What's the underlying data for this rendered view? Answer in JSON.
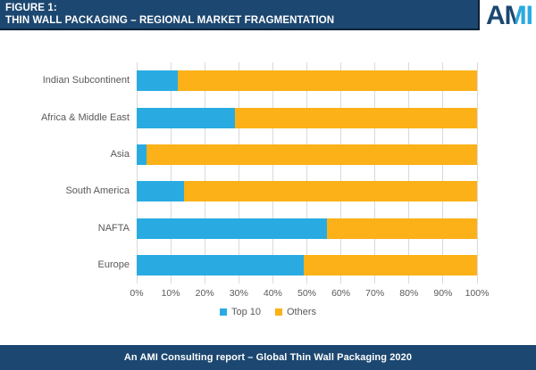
{
  "header": {
    "figure_label": "FIGURE 1:",
    "title": "THIN WALL PACKAGING – REGIONAL MARKET FRAGMENTATION"
  },
  "logo": {
    "letter_a": "A",
    "letter_m": "M",
    "letter_i": "I",
    "navy": "#1C4770",
    "cyan": "#29ABE2"
  },
  "colors": {
    "header_navy": "#1C4770",
    "header_border": "#0D2238",
    "top10_blue": "#29ABE2",
    "others_orange": "#FBB117",
    "axis_text_gray": "#595959",
    "gridline_gray": "#D9D9D9"
  },
  "chart_data": {
    "type": "bar",
    "orientation": "horizontal",
    "stacked": true,
    "title": "Thin Wall Packaging – Regional Market Fragmentation",
    "categories": [
      "Indian Subcontinent",
      "Africa & Middle East",
      "Asia",
      "South America",
      "NAFTA",
      "Europe"
    ],
    "series": [
      {
        "name": "Top 10",
        "color": "#29ABE2",
        "values": [
          12,
          29,
          3,
          14,
          56,
          49
        ]
      },
      {
        "name": "Others",
        "color": "#FBB117",
        "values": [
          88,
          71,
          97,
          86,
          44,
          51
        ]
      }
    ],
    "x_axis": {
      "min": 0,
      "max": 100,
      "tick_step": 10,
      "ticks": [
        "0%",
        "10%",
        "20%",
        "30%",
        "40%",
        "50%",
        "60%",
        "70%",
        "80%",
        "90%",
        "100%"
      ]
    },
    "grid": true,
    "legend_position": "bottom",
    "legend": [
      "Top 10",
      "Others"
    ]
  },
  "footer": {
    "text": "An AMI Consulting report – Global Thin Wall Packaging 2020"
  }
}
